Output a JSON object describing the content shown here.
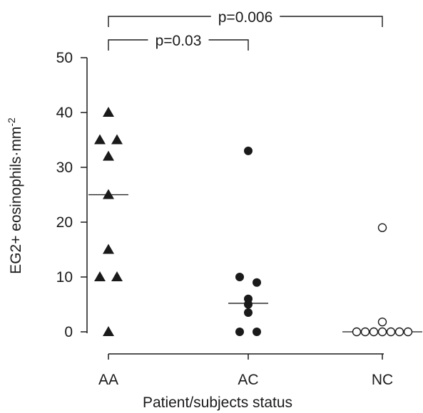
{
  "chart_data": {
    "type": "scatter",
    "xlabel": "Patient/subjects status",
    "ylabel_main": "EG2+ eosinophils·mm",
    "ylabel_sup": "-2",
    "categories": [
      "AA",
      "AC",
      "NC"
    ],
    "ylim": [
      0,
      50
    ],
    "yticks": [
      0,
      10,
      20,
      30,
      40,
      50
    ],
    "grid": false,
    "legend": "none",
    "series": [
      {
        "category": "AA",
        "marker": "filled-triangle",
        "points": [
          {
            "dx": 0,
            "y": 40
          },
          {
            "dx": -1,
            "y": 35
          },
          {
            "dx": 1,
            "y": 35
          },
          {
            "dx": 0,
            "y": 32
          },
          {
            "dx": 0,
            "y": 25
          },
          {
            "dx": 0,
            "y": 15
          },
          {
            "dx": -1,
            "y": 10
          },
          {
            "dx": 1,
            "y": 10
          },
          {
            "dx": 0,
            "y": 0
          }
        ],
        "median": 25
      },
      {
        "category": "AC",
        "marker": "filled-circle",
        "points": [
          {
            "dx": 0,
            "y": 33
          },
          {
            "dx": -1,
            "y": 10
          },
          {
            "dx": 1,
            "y": 9
          },
          {
            "dx": 0,
            "y": 6
          },
          {
            "dx": 0,
            "y": 5
          },
          {
            "dx": 0,
            "y": 3.5
          },
          {
            "dx": -1,
            "y": 0
          },
          {
            "dx": 1,
            "y": 0
          }
        ],
        "median": 5.2
      },
      {
        "category": "NC",
        "marker": "open-circle",
        "points": [
          {
            "dx": 0,
            "y": 19
          },
          {
            "dx": 0,
            "y": 1.8
          },
          {
            "dx": -3,
            "y": 0
          },
          {
            "dx": -2,
            "y": 0
          },
          {
            "dx": -1,
            "y": 0
          },
          {
            "dx": 0,
            "y": 0
          },
          {
            "dx": 1,
            "y": 0
          },
          {
            "dx": 2,
            "y": 0
          },
          {
            "dx": 3,
            "y": 0
          }
        ],
        "median": 0
      }
    ],
    "comparisons": [
      {
        "from": "AA",
        "to": "NC",
        "label": "p=0.006"
      },
      {
        "from": "AA",
        "to": "AC",
        "label": "p=0.03"
      }
    ]
  }
}
